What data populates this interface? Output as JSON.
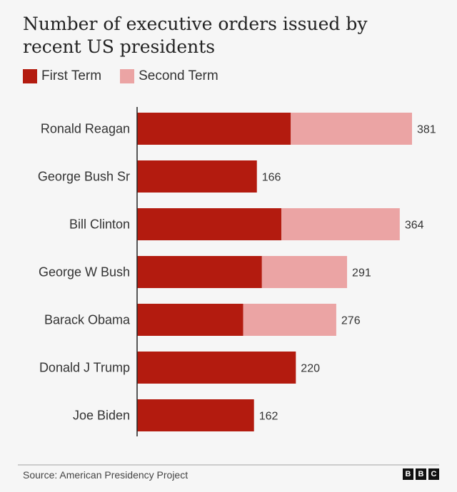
{
  "chart_data": {
    "type": "bar",
    "orientation": "horizontal",
    "stacked": true,
    "title": "Number of executive orders issued by recent US presidents",
    "categories": [
      "Ronald Reagan",
      "George Bush Sr",
      "Bill Clinton",
      "George W Bush",
      "Barack Obama",
      "Donald J Trump",
      "Joe Biden"
    ],
    "series": [
      {
        "name": "First Term",
        "color": "#b31b0f",
        "values": [
          213,
          166,
          200,
          173,
          147,
          220,
          162
        ]
      },
      {
        "name": "Second Term",
        "color": "#eba4a4",
        "values": [
          168,
          0,
          164,
          118,
          129,
          0,
          0
        ]
      }
    ],
    "totals": [
      381,
      166,
      364,
      291,
      276,
      220,
      162
    ],
    "xlim": [
      0,
      381
    ],
    "grid": false,
    "legend": "top-left"
  },
  "footer": {
    "source": "Source: American Presidency Project",
    "logo": "BBC"
  }
}
